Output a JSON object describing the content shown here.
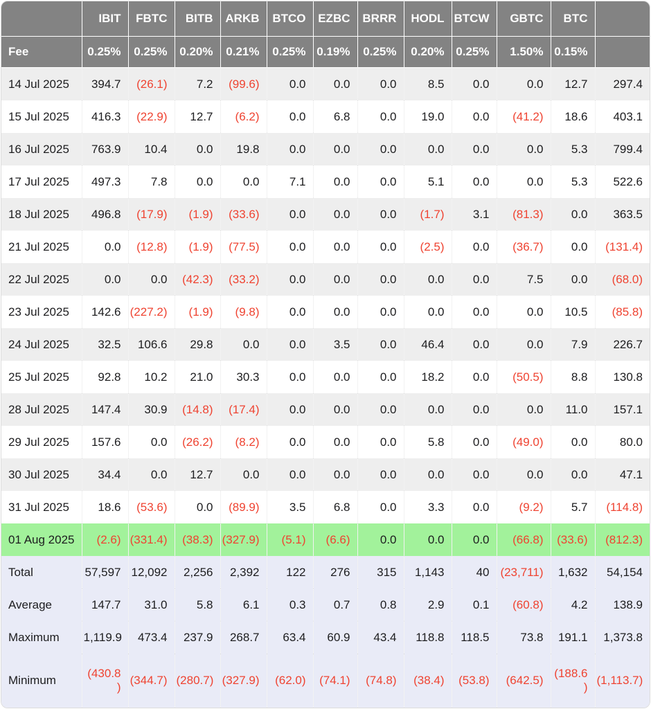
{
  "colors": {
    "header_bg": "#838383",
    "alt_row_bg": "#eeeeee",
    "highlight_row_bg": "#a2f29b",
    "summary_row_bg": "#e9ebf7",
    "negative_text": "#ef4331",
    "header_text": "#ffffff",
    "body_text": "#1d1d1f"
  },
  "chart_data": {
    "type": "table",
    "columns": [
      "IBIT",
      "FBTC",
      "BITB",
      "ARKB",
      "BTCO",
      "EZBC",
      "BRRR",
      "HODL",
      "BTCW",
      "GBTC",
      "BTC"
    ],
    "fee_row": {
      "label": "Fee",
      "values": [
        "0.25%",
        "0.25%",
        "0.20%",
        "0.21%",
        "0.25%",
        "0.19%",
        "0.25%",
        "0.20%",
        "0.25%",
        "1.50%",
        "0.15%"
      ]
    },
    "rows": [
      {
        "date": "14 Jul 2025",
        "highlight": false,
        "values": [
          "394.7",
          "(26.1)",
          "7.2",
          "(99.6)",
          "0.0",
          "0.0",
          "0.0",
          "8.5",
          "0.0",
          "0.0",
          "12.7",
          "297.4"
        ]
      },
      {
        "date": "15 Jul 2025",
        "highlight": false,
        "values": [
          "416.3",
          "(22.9)",
          "12.7",
          "(6.2)",
          "0.0",
          "6.8",
          "0.0",
          "19.0",
          "0.0",
          "(41.2)",
          "18.6",
          "403.1"
        ]
      },
      {
        "date": "16 Jul 2025",
        "highlight": false,
        "values": [
          "763.9",
          "10.4",
          "0.0",
          "19.8",
          "0.0",
          "0.0",
          "0.0",
          "0.0",
          "0.0",
          "0.0",
          "5.3",
          "799.4"
        ]
      },
      {
        "date": "17 Jul 2025",
        "highlight": false,
        "values": [
          "497.3",
          "7.8",
          "0.0",
          "0.0",
          "7.1",
          "0.0",
          "0.0",
          "5.1",
          "0.0",
          "0.0",
          "5.3",
          "522.6"
        ]
      },
      {
        "date": "18 Jul 2025",
        "highlight": false,
        "values": [
          "496.8",
          "(17.9)",
          "(1.9)",
          "(33.6)",
          "0.0",
          "0.0",
          "0.0",
          "(1.7)",
          "3.1",
          "(81.3)",
          "0.0",
          "363.5"
        ]
      },
      {
        "date": "21 Jul 2025",
        "highlight": false,
        "values": [
          "0.0",
          "(12.8)",
          "(1.9)",
          "(77.5)",
          "0.0",
          "0.0",
          "0.0",
          "(2.5)",
          "0.0",
          "(36.7)",
          "0.0",
          "(131.4)"
        ]
      },
      {
        "date": "22 Jul 2025",
        "highlight": false,
        "values": [
          "0.0",
          "0.0",
          "(42.3)",
          "(33.2)",
          "0.0",
          "0.0",
          "0.0",
          "0.0",
          "0.0",
          "7.5",
          "0.0",
          "(68.0)"
        ]
      },
      {
        "date": "23 Jul 2025",
        "highlight": false,
        "values": [
          "142.6",
          "(227.2)",
          "(1.9)",
          "(9.8)",
          "0.0",
          "0.0",
          "0.0",
          "0.0",
          "0.0",
          "0.0",
          "10.5",
          "(85.8)"
        ]
      },
      {
        "date": "24 Jul 2025",
        "highlight": false,
        "values": [
          "32.5",
          "106.6",
          "29.8",
          "0.0",
          "0.0",
          "3.5",
          "0.0",
          "46.4",
          "0.0",
          "0.0",
          "7.9",
          "226.7"
        ]
      },
      {
        "date": "25 Jul 2025",
        "highlight": false,
        "values": [
          "92.8",
          "10.2",
          "21.0",
          "30.3",
          "0.0",
          "0.0",
          "0.0",
          "18.2",
          "0.0",
          "(50.5)",
          "8.8",
          "130.8"
        ]
      },
      {
        "date": "28 Jul 2025",
        "highlight": false,
        "values": [
          "147.4",
          "30.9",
          "(14.8)",
          "(17.4)",
          "0.0",
          "0.0",
          "0.0",
          "0.0",
          "0.0",
          "0.0",
          "11.0",
          "157.1"
        ]
      },
      {
        "date": "29 Jul 2025",
        "highlight": false,
        "values": [
          "157.6",
          "0.0",
          "(26.2)",
          "(8.2)",
          "0.0",
          "0.0",
          "0.0",
          "5.8",
          "0.0",
          "(49.0)",
          "0.0",
          "80.0"
        ]
      },
      {
        "date": "30 Jul 2025",
        "highlight": false,
        "values": [
          "34.4",
          "0.0",
          "12.7",
          "0.0",
          "0.0",
          "0.0",
          "0.0",
          "0.0",
          "0.0",
          "0.0",
          "0.0",
          "47.1"
        ]
      },
      {
        "date": "31 Jul 2025",
        "highlight": false,
        "values": [
          "18.6",
          "(53.6)",
          "0.0",
          "(89.9)",
          "3.5",
          "6.8",
          "0.0",
          "3.3",
          "0.0",
          "(9.2)",
          "5.7",
          "(114.8)"
        ]
      },
      {
        "date": "01 Aug 2025",
        "highlight": true,
        "values": [
          "(2.6)",
          "(331.4)",
          "(38.3)",
          "(327.9)",
          "(5.1)",
          "(6.6)",
          "0.0",
          "0.0",
          "0.0",
          "(66.8)",
          "(33.6)",
          "(812.3)"
        ]
      }
    ],
    "summary_rows": [
      {
        "label": "Total",
        "values": [
          "57,597",
          "12,092",
          "2,256",
          "2,392",
          "122",
          "276",
          "315",
          "1,143",
          "40",
          "(23,711)",
          "1,632",
          "54,154"
        ]
      },
      {
        "label": "Average",
        "values": [
          "147.7",
          "31.0",
          "5.8",
          "6.1",
          "0.3",
          "0.7",
          "0.8",
          "2.9",
          "0.1",
          "(60.8)",
          "4.2",
          "138.9"
        ]
      },
      {
        "label": "Maximum",
        "values": [
          "1,119.9",
          "473.4",
          "237.9",
          "268.7",
          "63.4",
          "60.9",
          "43.4",
          "118.8",
          "118.5",
          "73.8",
          "191.1",
          "1,373.8"
        ]
      },
      {
        "label": "Minimum",
        "values": [
          "(430.8\n)",
          "(344.7)",
          "(280.7)",
          "(327.9)",
          "(62.0)",
          "(74.1)",
          "(74.8)",
          "(38.4)",
          "(53.8)",
          "(642.5)",
          "(188.6\n)",
          "(1,113.7)"
        ]
      }
    ]
  }
}
